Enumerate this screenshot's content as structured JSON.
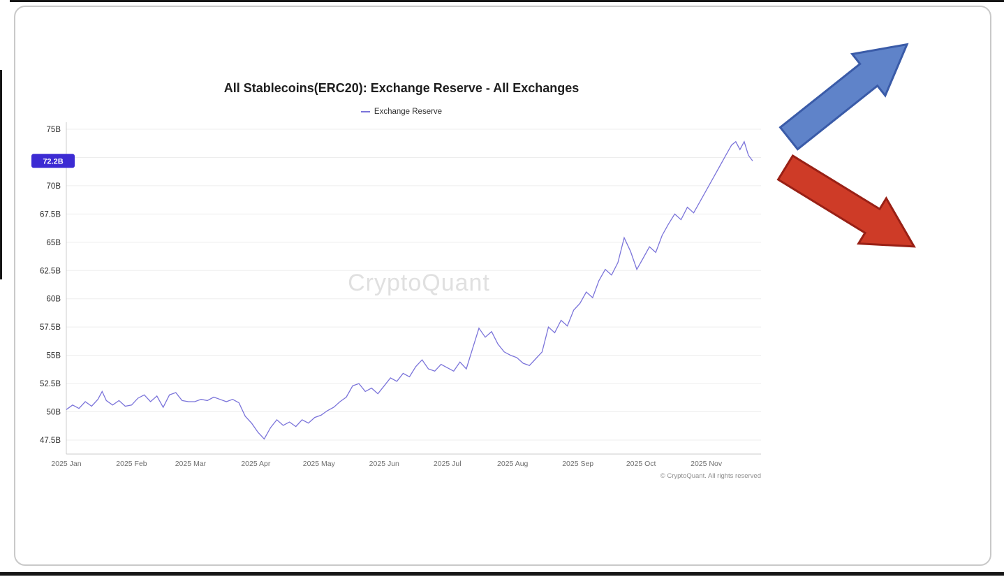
{
  "chart": {
    "title": "All Stablecoins(ERC20): Exchange Reserve - All Exchanges",
    "legend_label": "Exchange Reserve",
    "watermark": "CryptoQuant",
    "copyright": "© CryptoQuant. All rights reserved"
  },
  "arrows": {
    "up_color": "#5f83c9",
    "up_stroke": "#3a5ba8",
    "down_color": "#ce3b27",
    "down_stroke": "#992015"
  },
  "chart_data": {
    "type": "line",
    "title": "All Stablecoins(ERC20): Exchange Reserve - All Exchanges",
    "ylabel": "",
    "xlabel": "",
    "grid": "horizontal",
    "legend_position": "top",
    "line_color": "#7b74da",
    "ylim": [
      47.5,
      75
    ],
    "x_range_days": 330,
    "current": {
      "value": 72.2,
      "label": "72.2B",
      "bg": "#3c2bd3",
      "text_color": "#ffffff"
    },
    "yticks": [
      {
        "v": 75,
        "label": "75B"
      },
      {
        "v": 72.5,
        "label": ""
      },
      {
        "v": 70,
        "label": "70B"
      },
      {
        "v": 67.5,
        "label": "67.5B"
      },
      {
        "v": 65,
        "label": "65B"
      },
      {
        "v": 62.5,
        "label": "62.5B"
      },
      {
        "v": 60,
        "label": "60B"
      },
      {
        "v": 57.5,
        "label": "57.5B"
      },
      {
        "v": 55,
        "label": "55B"
      },
      {
        "v": 52.5,
        "label": "52.5B"
      },
      {
        "v": 50,
        "label": "50B"
      },
      {
        "v": 47.5,
        "label": "47.5B"
      }
    ],
    "xticks": [
      {
        "date": "2025-01-01",
        "label": "2025 Jan"
      },
      {
        "date": "2025-02-01",
        "label": "2025 Feb"
      },
      {
        "date": "2025-03-01",
        "label": "2025 Mar"
      },
      {
        "date": "2025-04-01",
        "label": "2025 Apr"
      },
      {
        "date": "2025-05-01",
        "label": "2025 May"
      },
      {
        "date": "2025-06-01",
        "label": "2025 Jun"
      },
      {
        "date": "2025-07-01",
        "label": "2025 Jul"
      },
      {
        "date": "2025-08-01",
        "label": "2025 Aug"
      },
      {
        "date": "2025-09-01",
        "label": "2025 Sep"
      },
      {
        "date": "2025-10-01",
        "label": "2025 Oct"
      },
      {
        "date": "2025-11-01",
        "label": "2025 Nov"
      }
    ],
    "series": [
      {
        "name": "Exchange Reserve",
        "dates": [
          "2025-01-01",
          "2025-01-04",
          "2025-01-07",
          "2025-01-10",
          "2025-01-13",
          "2025-01-16",
          "2025-01-18",
          "2025-01-20",
          "2025-01-23",
          "2025-01-26",
          "2025-01-29",
          "2025-02-01",
          "2025-02-04",
          "2025-02-07",
          "2025-02-10",
          "2025-02-13",
          "2025-02-16",
          "2025-02-19",
          "2025-02-22",
          "2025-02-25",
          "2025-02-28",
          "2025-03-03",
          "2025-03-06",
          "2025-03-09",
          "2025-03-12",
          "2025-03-15",
          "2025-03-18",
          "2025-03-21",
          "2025-03-24",
          "2025-03-27",
          "2025-03-30",
          "2025-04-02",
          "2025-04-05",
          "2025-04-08",
          "2025-04-11",
          "2025-04-14",
          "2025-04-17",
          "2025-04-20",
          "2025-04-23",
          "2025-04-26",
          "2025-04-29",
          "2025-05-02",
          "2025-05-05",
          "2025-05-08",
          "2025-05-11",
          "2025-05-14",
          "2025-05-17",
          "2025-05-20",
          "2025-05-23",
          "2025-05-26",
          "2025-05-29",
          "2025-06-01",
          "2025-06-04",
          "2025-06-07",
          "2025-06-10",
          "2025-06-13",
          "2025-06-16",
          "2025-06-19",
          "2025-06-22",
          "2025-06-25",
          "2025-06-28",
          "2025-07-01",
          "2025-07-04",
          "2025-07-07",
          "2025-07-10",
          "2025-07-13",
          "2025-07-16",
          "2025-07-19",
          "2025-07-22",
          "2025-07-25",
          "2025-07-28",
          "2025-07-31",
          "2025-08-03",
          "2025-08-06",
          "2025-08-09",
          "2025-08-12",
          "2025-08-15",
          "2025-08-18",
          "2025-08-21",
          "2025-08-24",
          "2025-08-27",
          "2025-08-30",
          "2025-09-02",
          "2025-09-05",
          "2025-09-08",
          "2025-09-11",
          "2025-09-14",
          "2025-09-17",
          "2025-09-20",
          "2025-09-23",
          "2025-09-26",
          "2025-09-29",
          "2025-10-02",
          "2025-10-05",
          "2025-10-08",
          "2025-10-11",
          "2025-10-14",
          "2025-10-17",
          "2025-10-20",
          "2025-10-23",
          "2025-10-26",
          "2025-10-29",
          "2025-11-01",
          "2025-11-04",
          "2025-11-07",
          "2025-11-10",
          "2025-11-13",
          "2025-11-15",
          "2025-11-17",
          "2025-11-19",
          "2025-11-21",
          "2025-11-23"
        ],
        "values": [
          50.2,
          50.6,
          50.3,
          50.9,
          50.5,
          51.1,
          51.8,
          51.0,
          50.6,
          51.0,
          50.5,
          50.6,
          51.2,
          51.5,
          50.9,
          51.4,
          50.4,
          51.5,
          51.7,
          51.0,
          50.9,
          50.9,
          51.1,
          51.0,
          51.3,
          51.1,
          50.9,
          51.1,
          50.8,
          49.6,
          49.0,
          48.2,
          47.6,
          48.6,
          49.3,
          48.8,
          49.1,
          48.7,
          49.3,
          49.0,
          49.5,
          49.7,
          50.1,
          50.4,
          50.9,
          51.3,
          52.3,
          52.5,
          51.8,
          52.1,
          51.6,
          52.3,
          53.0,
          52.7,
          53.4,
          53.1,
          54.0,
          54.6,
          53.8,
          53.6,
          54.2,
          53.9,
          53.6,
          54.4,
          53.8,
          55.6,
          57.4,
          56.6,
          57.1,
          56.0,
          55.3,
          55.0,
          54.8,
          54.3,
          54.1,
          54.7,
          55.3,
          57.5,
          57.0,
          58.1,
          57.6,
          59.0,
          59.6,
          60.6,
          60.1,
          61.6,
          62.6,
          62.1,
          63.2,
          65.4,
          64.2,
          62.6,
          63.6,
          64.6,
          64.1,
          65.6,
          66.6,
          67.5,
          67.0,
          68.1,
          67.6,
          68.6,
          69.6,
          70.6,
          71.6,
          72.6,
          73.6,
          73.9,
          73.2,
          73.9,
          72.7,
          72.2
        ]
      }
    ]
  }
}
